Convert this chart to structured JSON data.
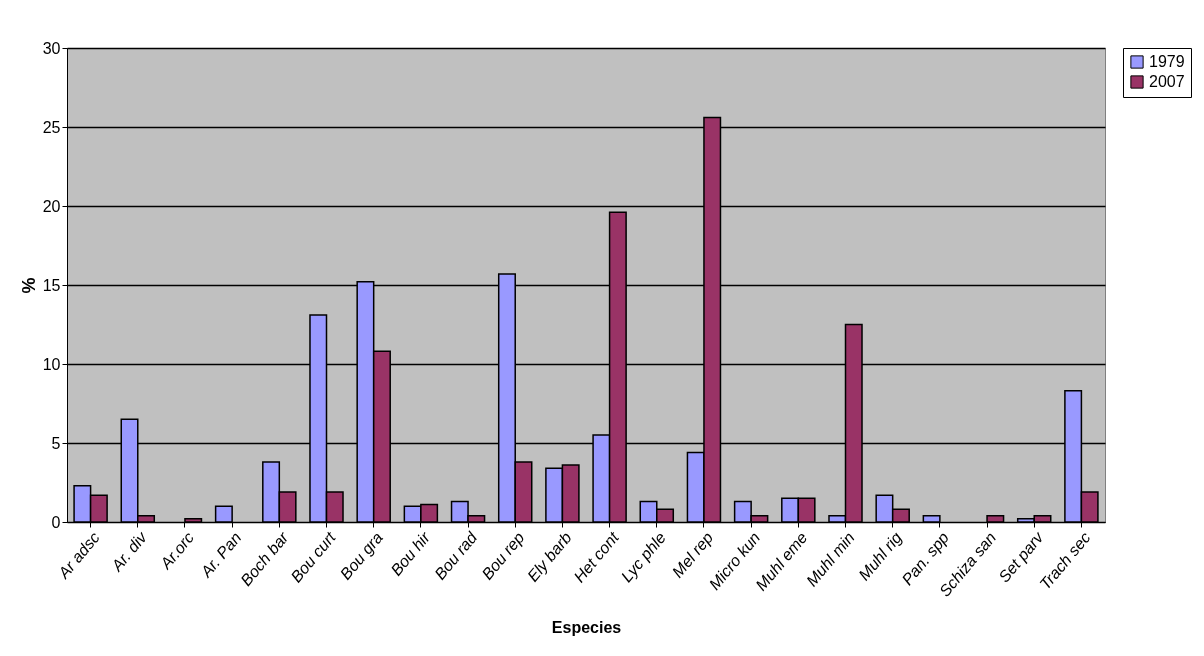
{
  "chart_data": {
    "type": "bar",
    "xlabel": "Especies",
    "ylabel": "%",
    "categories": [
      "Ar adsc",
      "Ar. div",
      "Ar.orc",
      "Ar. Pan",
      "Boch bar",
      "Bou curt",
      "Bou gra",
      "Bou hir",
      "Bou rad",
      "Bou rep",
      "Ely barb",
      "Het cont",
      "Lyc phle",
      "Mel  rep",
      "Micro kun",
      "Muhl eme",
      "Muhl min",
      "Muhl rig",
      "Pan. spp",
      "Schiza san",
      "Set parv",
      "Trach sec"
    ],
    "series": [
      {
        "name": "1979",
        "color": "#9999ff",
        "values": [
          2.3,
          6.5,
          null,
          1.0,
          3.8,
          13.1,
          15.2,
          1.0,
          1.3,
          15.7,
          3.4,
          5.5,
          1.3,
          4.4,
          1.3,
          1.5,
          0.4,
          1.7,
          0.4,
          null,
          0.2,
          8.3
        ]
      },
      {
        "name": "2007",
        "color": "#993366",
        "values": [
          1.7,
          0.4,
          0.2,
          null,
          1.9,
          1.9,
          10.8,
          1.1,
          0.4,
          3.8,
          3.6,
          19.6,
          0.8,
          25.6,
          0.4,
          1.5,
          12.5,
          0.8,
          null,
          0.4,
          0.4,
          1.9
        ]
      }
    ],
    "ylim": [
      0,
      30
    ],
    "yticks": [
      0,
      5,
      10,
      15,
      20,
      25,
      30
    ],
    "grid": "y",
    "legend": "right"
  }
}
